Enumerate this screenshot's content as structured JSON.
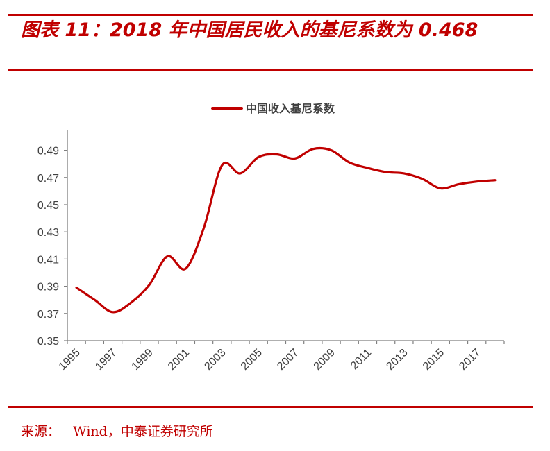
{
  "header": {
    "title": "图表 11：2018 年中国居民收入的基尼系数为 0.468"
  },
  "footer": {
    "source": "来源：   Wind，中泰证券研究所"
  },
  "colors": {
    "accent": "#c00000",
    "line": "#c00000",
    "axis": "#7f7f7f",
    "text": "#404040"
  },
  "chart_data": {
    "type": "line",
    "title": "",
    "xlabel": "",
    "ylabel": "",
    "x": [
      1995,
      1996,
      1997,
      1998,
      1999,
      2000,
      2001,
      2002,
      2003,
      2004,
      2005,
      2006,
      2007,
      2008,
      2009,
      2010,
      2011,
      2012,
      2013,
      2014,
      2015,
      2016,
      2017,
      2018
    ],
    "series": [
      {
        "name": "中国收入基尼系数",
        "values": [
          0.389,
          0.38,
          0.371,
          0.378,
          0.391,
          0.412,
          0.403,
          0.433,
          0.479,
          0.473,
          0.485,
          0.487,
          0.484,
          0.491,
          0.49,
          0.481,
          0.477,
          0.474,
          0.473,
          0.469,
          0.462,
          0.465,
          0.467,
          0.468
        ]
      }
    ],
    "ylim": [
      0.35,
      0.5
    ],
    "yticks": [
      0.35,
      0.37,
      0.39,
      0.41,
      0.43,
      0.45,
      0.47,
      0.49
    ],
    "ytick_labels": [
      "0.35",
      "0.37",
      "0.39",
      "0.41",
      "0.43",
      "0.45",
      "0.47",
      "0.49"
    ],
    "xticks": [
      1995,
      1997,
      1999,
      2001,
      2003,
      2005,
      2007,
      2009,
      2011,
      2013,
      2015,
      2017
    ],
    "xtick_labels": [
      "1995",
      "1997",
      "1999",
      "2001",
      "2003",
      "2005",
      "2007",
      "2009",
      "2011",
      "2013",
      "2015",
      "2017"
    ],
    "legend_position": "top-center",
    "grid": false
  }
}
